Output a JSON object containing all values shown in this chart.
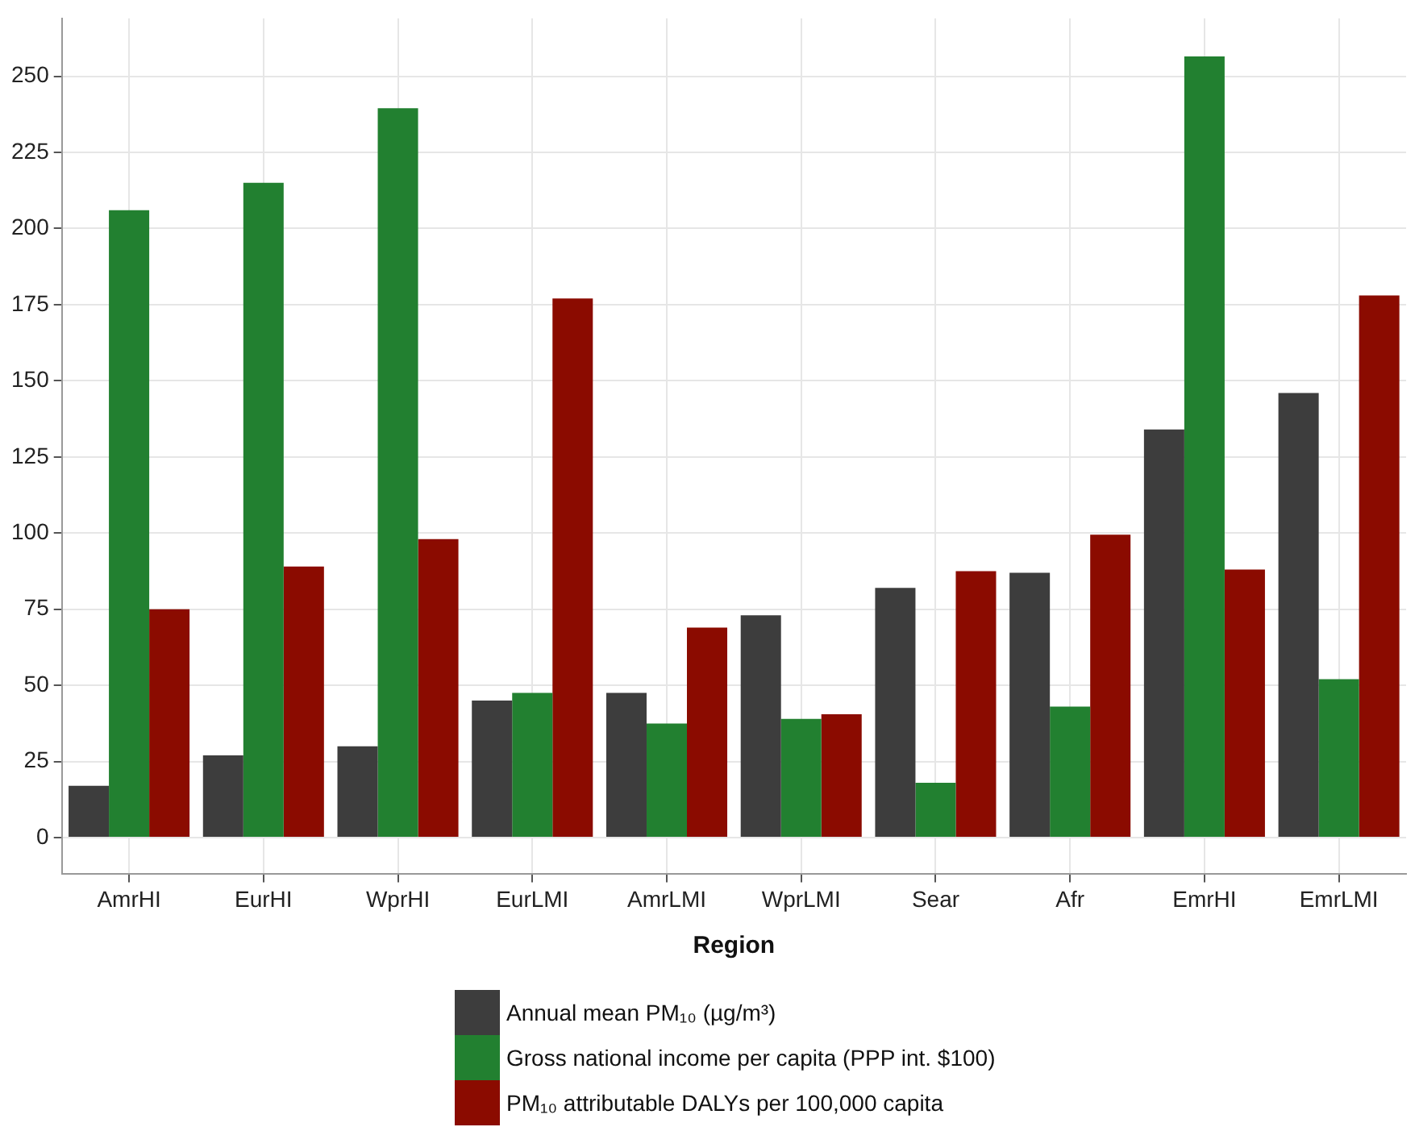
{
  "chart_data": {
    "type": "bar",
    "xlabel": "Region",
    "categories": [
      "AmrHI",
      "EurHI",
      "WprHI",
      "EurLMI",
      "AmrLMI",
      "WprLMI",
      "Sear",
      "Afr",
      "EmrHI",
      "EmrLMI"
    ],
    "series": [
      {
        "name": "Annual mean PM₁₀ (µg/m³)",
        "color": "#3d3d3d",
        "values": [
          17,
          27,
          30,
          45,
          47.5,
          73,
          82,
          87,
          134,
          146
        ]
      },
      {
        "name": "Gross national income per capita (PPP int. $100)",
        "color": "#228030",
        "values": [
          206,
          215,
          239.5,
          47.5,
          37.5,
          39,
          18,
          43,
          256.5,
          52
        ]
      },
      {
        "name": "PM₁₀ attributable DALYs per 100,000 capita",
        "color": "#8b0b00",
        "values": [
          75,
          89,
          98,
          177,
          69,
          40.5,
          87.5,
          99.5,
          88,
          178
        ]
      }
    ],
    "ylim": [
      -12,
      269
    ],
    "yticks": [
      0,
      25,
      50,
      75,
      100,
      125,
      150,
      175,
      200,
      225,
      250
    ],
    "grid": true,
    "legend": "bottom"
  }
}
